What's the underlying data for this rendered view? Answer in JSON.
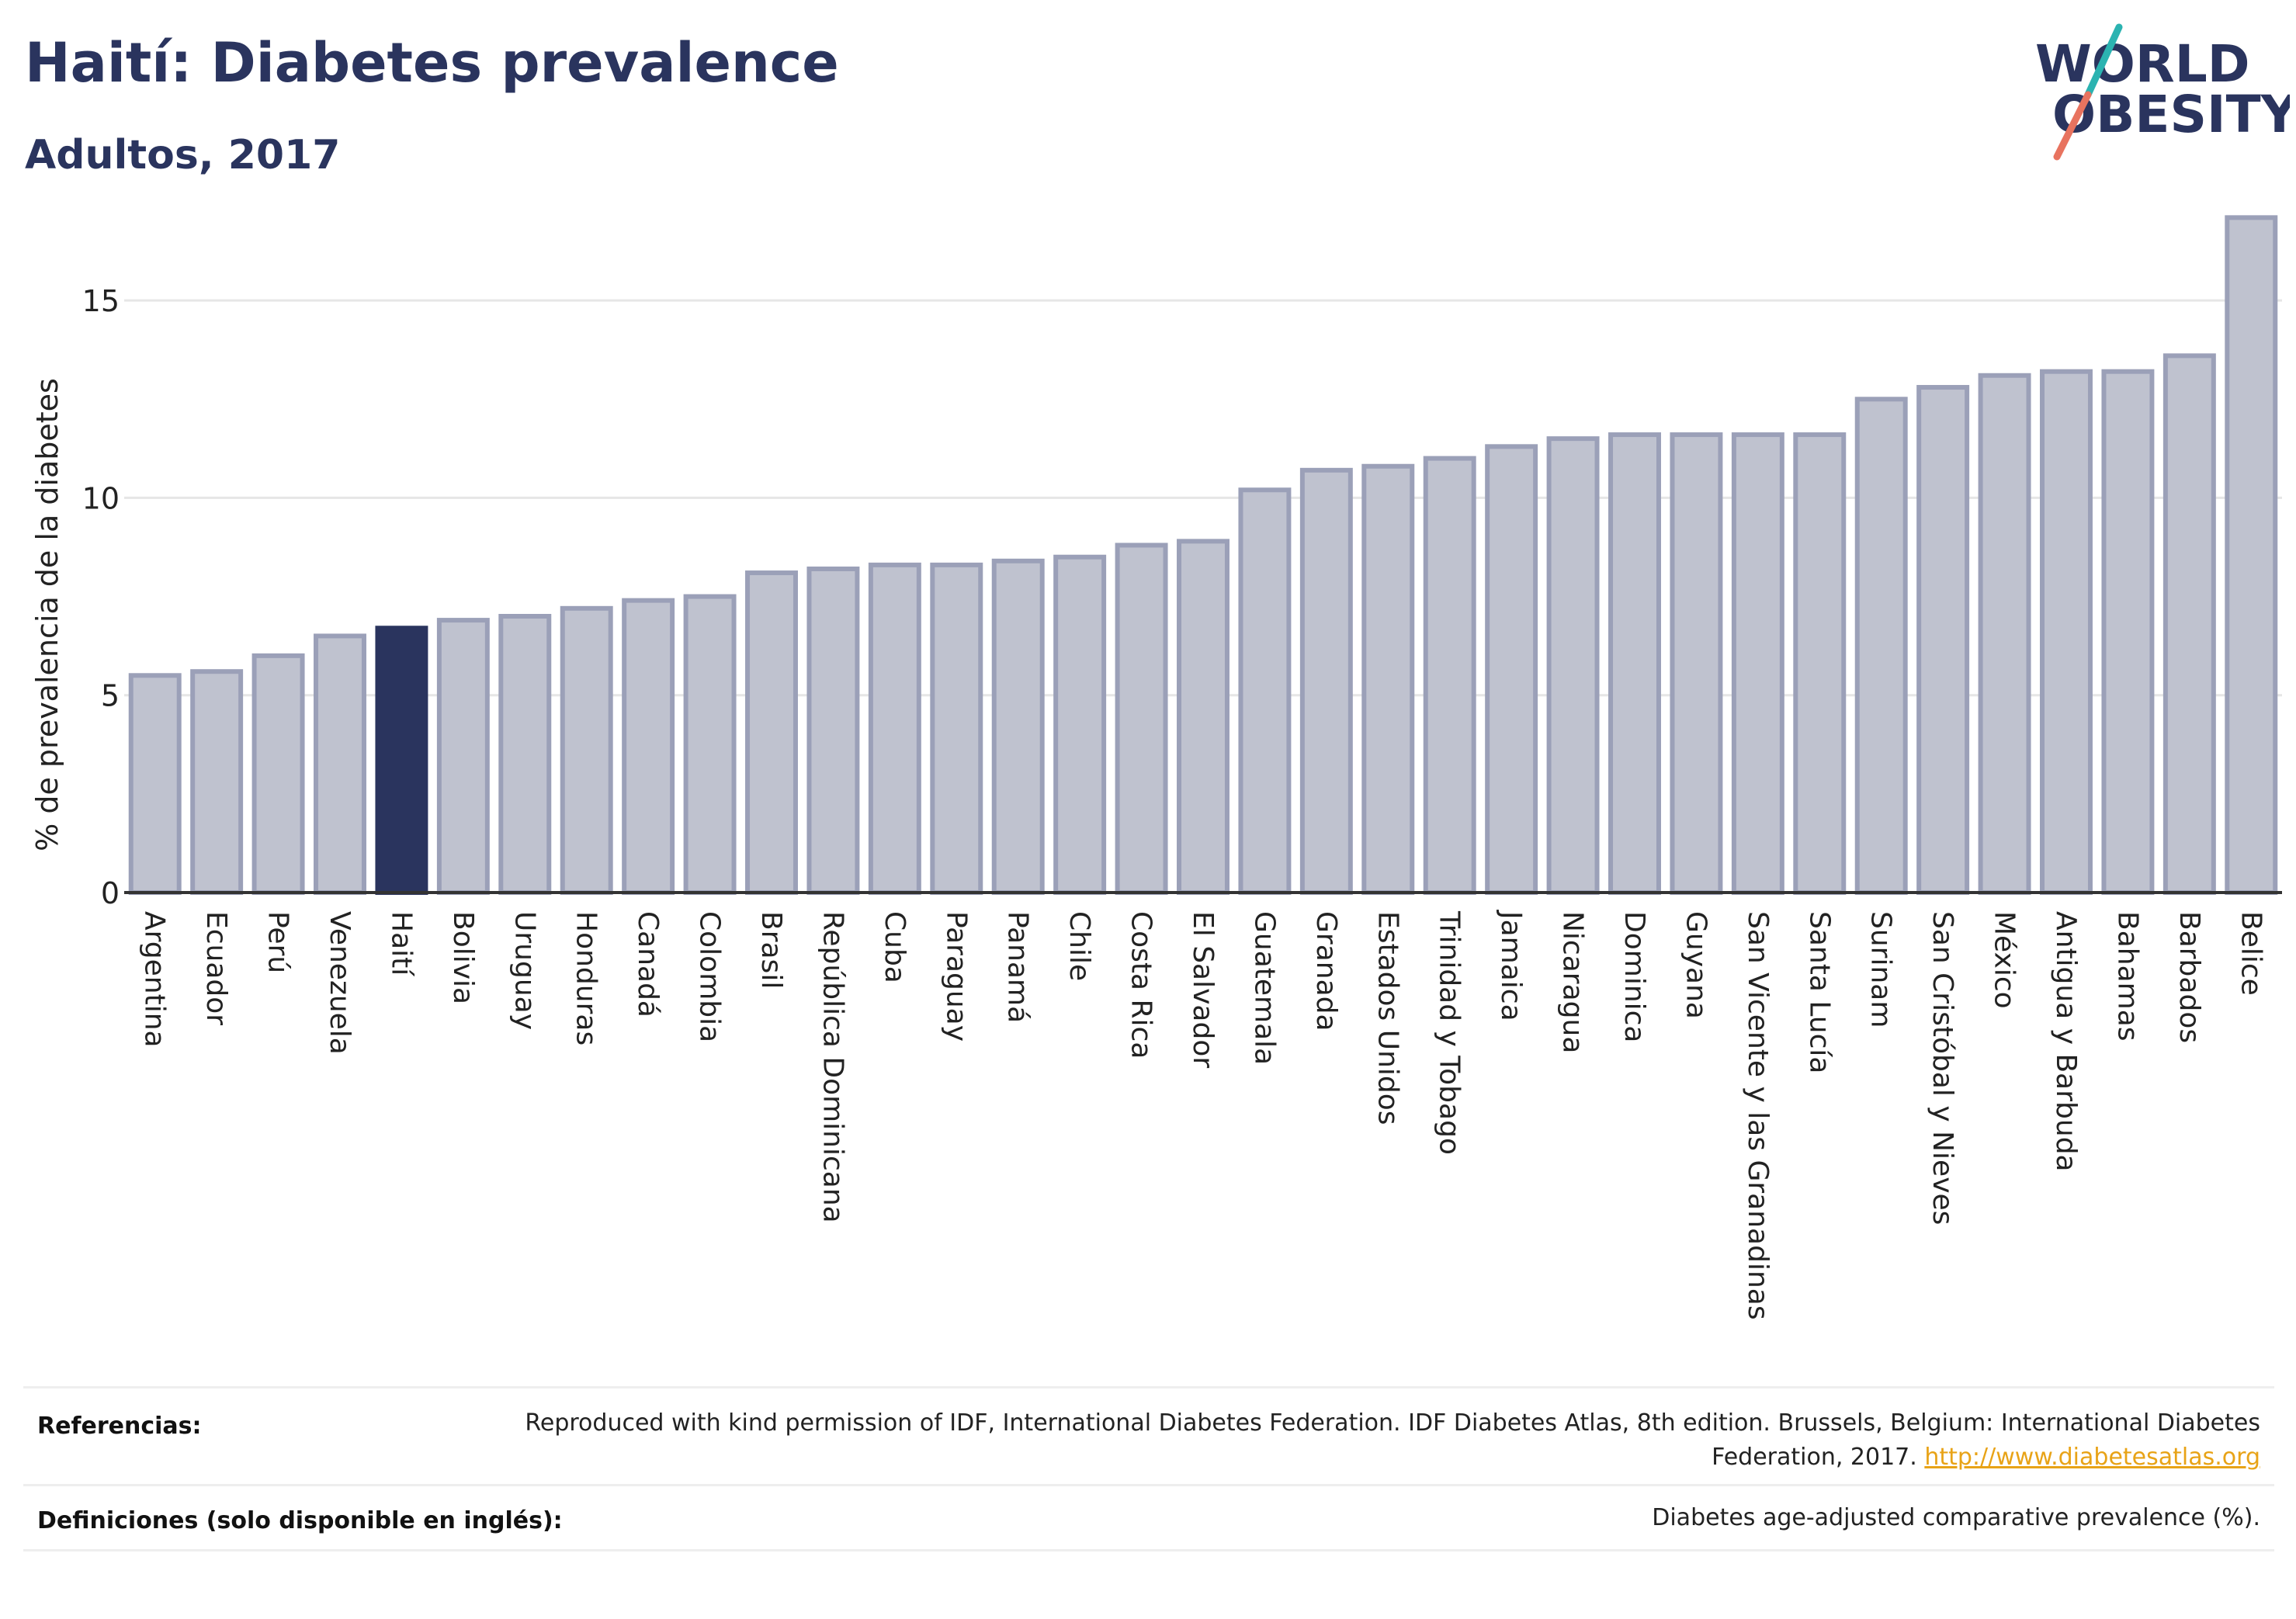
{
  "header": {
    "title": "Haití: Diabetes prevalence",
    "subtitle": "Adultos, 2017"
  },
  "logo": {
    "line1": "WORLD",
    "line2": "OBESITY",
    "colors": {
      "text": "#2a345e",
      "slash_top": "#2bb3b1",
      "slash_bottom": "#e8735f"
    }
  },
  "colors": {
    "bar_default": "#bfc2cf",
    "bar_border": "#9ba0b8",
    "bar_highlight": "#2a345e",
    "gridline": "#e6e6e6",
    "axis": "#333333"
  },
  "chart_data": {
    "type": "bar",
    "title": "Haití: Diabetes prevalence",
    "subtitle": "Adultos, 2017",
    "xlabel": "",
    "ylabel": "% de prevalencia de la diabetes",
    "ylim": [
      0,
      17.5
    ],
    "yticks": [
      0,
      5,
      10,
      15
    ],
    "grid": true,
    "highlight": "Haití",
    "categories": [
      "Argentina",
      "Ecuador",
      "Perú",
      "Venezuela",
      "Haití",
      "Bolivia",
      "Uruguay",
      "Honduras",
      "Canadá",
      "Colombia",
      "Brasil",
      "República Dominicana",
      "Cuba",
      "Paraguay",
      "Panamá",
      "Chile",
      "Costa Rica",
      "El Salvador",
      "Guatemala",
      "Granada",
      "Estados Unidos",
      "Trinidad y Tobago",
      "Jamaica",
      "Nicaragua",
      "Dominica",
      "Guyana",
      "San Vicente y las Granadinas",
      "Santa Lucía",
      "Surinam",
      "San Cristóbal y Nieves",
      "México",
      "Antigua y Barbuda",
      "Bahamas",
      "Barbados",
      "Belice"
    ],
    "values": [
      5.5,
      5.6,
      6.0,
      6.5,
      6.7,
      6.9,
      7.0,
      7.2,
      7.4,
      7.5,
      8.1,
      8.2,
      8.3,
      8.3,
      8.4,
      8.5,
      8.8,
      8.9,
      10.2,
      10.7,
      10.8,
      11.0,
      11.3,
      11.5,
      11.6,
      11.6,
      11.6,
      11.6,
      12.5,
      12.8,
      13.1,
      13.2,
      13.2,
      13.6,
      17.1
    ]
  },
  "footer": {
    "references_label": "Referencias:",
    "references_text": "Reproduced with kind permission of IDF, International Diabetes Federation. IDF Diabetes Atlas, 8th edition. Brussels, Belgium: International Diabetes Federation, 2017.",
    "references_link": "http://www.diabetesatlas.org",
    "definitions_label": "Definiciones (solo disponible en inglés):",
    "definitions_text": "Diabetes age-adjusted comparative prevalence (%)."
  }
}
